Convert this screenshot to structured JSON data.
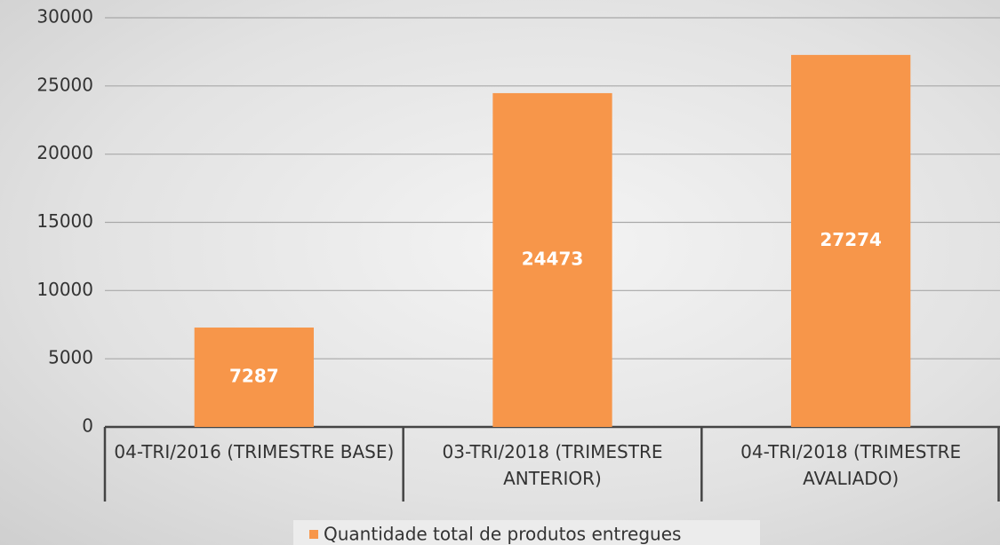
{
  "chart_data": {
    "type": "bar",
    "categories": [
      "04-TRI/2016 (TRIMESTRE BASE)",
      "03-TRI/2018 (TRIMESTRE ANTERIOR)",
      "04-TRI/2018 (TRIMESTRE AVALIADO)"
    ],
    "series": [
      {
        "name": "Quantidade total de produtos entregues",
        "color": "#f7964a",
        "values": [
          7287,
          24473,
          27274
        ]
      }
    ],
    "ylim": [
      0,
      30000
    ],
    "yticks": [
      0,
      5000,
      10000,
      15000,
      20000,
      25000,
      30000
    ],
    "grid": true,
    "legend": "bottom",
    "data_labels": true
  }
}
